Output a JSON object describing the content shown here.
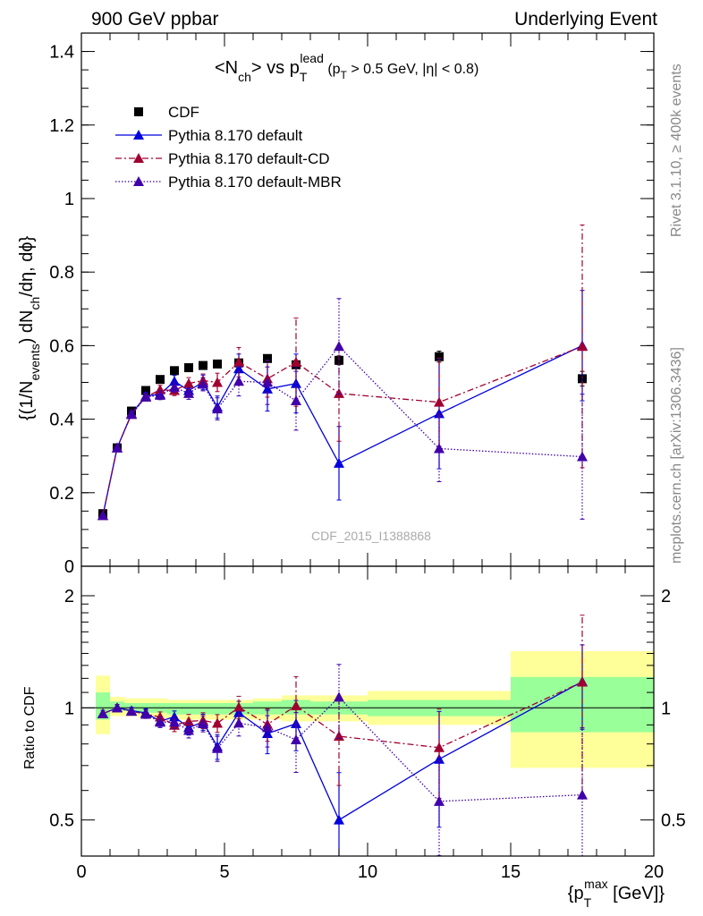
{
  "header": {
    "left": "900 GeV ppbar",
    "right": "Underlying Event"
  },
  "side_labels": {
    "rivet": "Rivet 3.1.10, ≥ 400k events",
    "mcplots": "mcplots.cern.ch [arXiv:1306.3436]"
  },
  "watermark": "CDF_2015_I1388868",
  "chart_data": [
    {
      "type": "scatter",
      "title": {
        "base": "<N",
        "sub1": "ch",
        "mid": "> vs p",
        "sub2": "T",
        "sup2": "lead",
        "cut_open": " (p",
        "cut_sub": "T",
        "cut_rest": " > 0.5 GeV, |η| < 0.8)"
      },
      "ylabel": {
        "p1": "{(1/N",
        "s1": "events",
        "p2": ") dN",
        "s2": "ch",
        "p3": "/dη, dϕ}"
      },
      "xlim": [
        0,
        20
      ],
      "ylim": [
        0,
        1.45
      ],
      "yticks": [
        "0",
        "0.2",
        "0.4",
        "0.6",
        "0.8",
        "1",
        "1.2",
        "1.4"
      ],
      "legend_position": "top-left",
      "series": [
        {
          "name": "CDF",
          "style": "data",
          "color": "#000000",
          "x": [
            0.75,
            1.25,
            1.75,
            2.25,
            2.75,
            3.25,
            3.75,
            4.25,
            4.75,
            5.5,
            6.5,
            7.5,
            9.0,
            12.5,
            17.5
          ],
          "y": [
            0.143,
            0.322,
            0.422,
            0.478,
            0.508,
            0.532,
            0.54,
            0.546,
            0.55,
            0.553,
            0.565,
            0.548,
            0.56,
            0.57,
            0.51
          ],
          "yerr": [
            0.004,
            0.006,
            0.006,
            0.008,
            0.008,
            0.008,
            0.008,
            0.008,
            0.008,
            0.009,
            0.01,
            0.01,
            0.012,
            0.015,
            0.02
          ]
        },
        {
          "name": "Pythia 8.170 default",
          "style": "solid",
          "color": "#0000dd",
          "x": [
            0.75,
            1.25,
            1.75,
            2.25,
            2.75,
            3.25,
            3.75,
            4.25,
            4.75,
            5.5,
            6.5,
            7.5,
            9.0,
            12.5,
            17.5
          ],
          "y": [
            0.138,
            0.322,
            0.415,
            0.463,
            0.468,
            0.503,
            0.478,
            0.5,
            0.433,
            0.537,
            0.482,
            0.497,
            0.28,
            0.415,
            0.6
          ],
          "yerr": [
            0.003,
            0.005,
            0.007,
            0.01,
            0.013,
            0.016,
            0.018,
            0.02,
            0.03,
            0.04,
            0.06,
            0.08,
            0.1,
            0.15,
            0.15
          ]
        },
        {
          "name": "Pythia 8.170 default-CD",
          "style": "dashdot",
          "color": "#a00030",
          "x": [
            0.75,
            1.25,
            1.75,
            2.25,
            2.75,
            3.25,
            3.75,
            4.25,
            4.75,
            5.5,
            6.5,
            7.5,
            9.0,
            12.5,
            17.5
          ],
          "y": [
            0.138,
            0.322,
            0.413,
            0.46,
            0.48,
            0.478,
            0.497,
            0.505,
            0.5,
            0.555,
            0.51,
            0.555,
            0.47,
            0.446,
            0.598
          ],
          "yerr": [
            0.003,
            0.005,
            0.007,
            0.01,
            0.012,
            0.014,
            0.016,
            0.018,
            0.025,
            0.04,
            0.05,
            0.12,
            0.13,
            0.12,
            0.33
          ]
        },
        {
          "name": "Pythia 8.170 default-MBR",
          "style": "dotted",
          "color": "#4000aa",
          "x": [
            0.75,
            1.25,
            1.75,
            2.25,
            2.75,
            3.25,
            3.75,
            4.25,
            4.75,
            5.5,
            6.5,
            7.5,
            9.0,
            12.5,
            17.5
          ],
          "y": [
            0.138,
            0.322,
            0.413,
            0.46,
            0.465,
            0.487,
            0.47,
            0.495,
            0.428,
            0.503,
            0.5,
            0.45,
            0.598,
            0.32,
            0.298
          ],
          "yerr": [
            0.003,
            0.005,
            0.007,
            0.01,
            0.012,
            0.014,
            0.016,
            0.018,
            0.03,
            0.04,
            0.06,
            0.08,
            0.13,
            0.09,
            0.17
          ]
        }
      ]
    },
    {
      "type": "scatter",
      "ylabel": "Ratio to CDF",
      "xlabel": {
        "p1": "{p",
        "sub": "T",
        "sup": "max",
        "p2": " [GeV]}"
      },
      "xlim": [
        0,
        20
      ],
      "ylim": [
        0.4,
        2.4
      ],
      "ylog": true,
      "yticks": [
        {
          "v": 0.5,
          "label": "0.5"
        },
        {
          "v": 1,
          "label": "1"
        },
        {
          "v": 2,
          "label": "2"
        }
      ],
      "xticks": [
        "0",
        "5",
        "10",
        "15",
        "20"
      ],
      "bands": {
        "edges": [
          0.5,
          1.0,
          1.5,
          2.0,
          2.5,
          3.0,
          3.5,
          4.0,
          4.5,
          5.0,
          6.0,
          7.0,
          8.0,
          10.0,
          15.0,
          20.0
        ],
        "inner": [
          [
            0.93,
            1.1
          ],
          [
            0.98,
            1.04
          ],
          [
            0.98,
            1.03
          ],
          [
            0.97,
            1.03
          ],
          [
            0.97,
            1.03
          ],
          [
            0.96,
            1.03
          ],
          [
            0.96,
            1.03
          ],
          [
            0.96,
            1.03
          ],
          [
            0.96,
            1.03
          ],
          [
            0.96,
            1.03
          ],
          [
            0.96,
            1.04
          ],
          [
            0.96,
            1.05
          ],
          [
            0.96,
            1.04
          ],
          [
            0.95,
            1.05
          ],
          [
            0.86,
            1.21
          ]
        ],
        "outer": [
          [
            0.85,
            1.22
          ],
          [
            0.95,
            1.07
          ],
          [
            0.95,
            1.06
          ],
          [
            0.94,
            1.06
          ],
          [
            0.94,
            1.06
          ],
          [
            0.93,
            1.05
          ],
          [
            0.93,
            1.05
          ],
          [
            0.93,
            1.05
          ],
          [
            0.93,
            1.05
          ],
          [
            0.93,
            1.05
          ],
          [
            0.93,
            1.06
          ],
          [
            0.92,
            1.08
          ],
          [
            0.92,
            1.08
          ],
          [
            0.9,
            1.11
          ],
          [
            0.69,
            1.42
          ]
        ],
        "inner_color": "#99ff99",
        "outer_color": "#ffff99"
      },
      "series": [
        {
          "name": "Pythia 8.170 default",
          "style": "solid",
          "color": "#0000dd",
          "x": [
            0.75,
            1.25,
            1.75,
            2.25,
            2.75,
            3.25,
            3.75,
            4.25,
            4.75,
            5.5,
            6.5,
            7.5,
            9.0,
            12.5,
            17.5
          ],
          "y": [
            0.965,
            1.0,
            0.983,
            0.969,
            0.921,
            0.946,
            0.885,
            0.916,
            0.787,
            0.971,
            0.853,
            0.907,
            0.5,
            0.728,
            1.176
          ],
          "yerr": [
            0.02,
            0.02,
            0.02,
            0.025,
            0.03,
            0.035,
            0.04,
            0.045,
            0.06,
            0.07,
            0.1,
            0.14,
            0.17,
            0.25,
            0.3
          ]
        },
        {
          "name": "Pythia 8.170 default-CD",
          "style": "dashdot",
          "color": "#a00030",
          "x": [
            0.75,
            1.25,
            1.75,
            2.25,
            2.75,
            3.25,
            3.75,
            4.25,
            4.75,
            5.5,
            6.5,
            7.5,
            9.0,
            12.5,
            17.5
          ],
          "y": [
            0.965,
            1.0,
            0.979,
            0.962,
            0.945,
            0.898,
            0.92,
            0.925,
            0.909,
            1.004,
            0.903,
            1.013,
            0.839,
            0.782,
            1.173
          ],
          "yerr": [
            0.02,
            0.02,
            0.02,
            0.025,
            0.03,
            0.035,
            0.04,
            0.045,
            0.05,
            0.07,
            0.09,
            0.2,
            0.22,
            0.21,
            0.6
          ]
        },
        {
          "name": "Pythia 8.170 default-MBR",
          "style": "dotted",
          "color": "#4000aa",
          "x": [
            0.75,
            1.25,
            1.75,
            2.25,
            2.75,
            3.25,
            3.75,
            4.25,
            4.75,
            5.5,
            6.5,
            7.5,
            9.0,
            12.5,
            17.5
          ],
          "y": [
            0.965,
            1.0,
            0.979,
            0.962,
            0.915,
            0.915,
            0.87,
            0.907,
            0.778,
            0.91,
            0.885,
            0.821,
            1.068,
            0.561,
            0.584
          ],
          "yerr": [
            0.02,
            0.02,
            0.02,
            0.025,
            0.03,
            0.035,
            0.04,
            0.045,
            0.06,
            0.07,
            0.1,
            0.15,
            0.24,
            0.16,
            0.3
          ]
        }
      ]
    }
  ]
}
